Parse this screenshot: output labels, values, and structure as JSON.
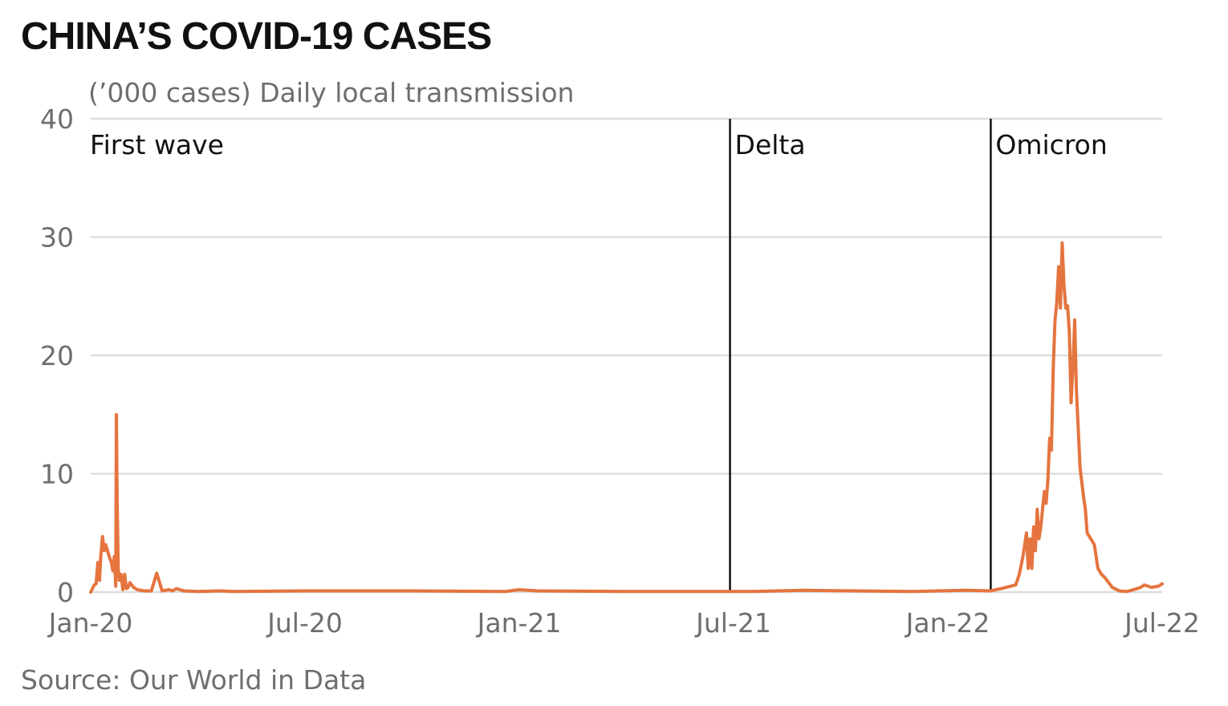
{
  "title": "CHINA’S COVID-19 CASES",
  "subtitle": "(’000 cases) Daily local transmission",
  "source": "Source:  Our World in Data",
  "colors": {
    "line": "#e5743f",
    "grid": "#dedede",
    "marker": "#111111",
    "text": "#6e6e6e"
  },
  "chart_data": {
    "type": "line",
    "title": "CHINA’S COVID-19 CASES",
    "ylabel": "(’000 cases) Daily local transmission",
    "xlabel": "",
    "ylim": [
      0,
      40
    ],
    "xlim": [
      0,
      30
    ],
    "x_unit": "months since Jan 2020",
    "y_ticks": [
      0,
      10,
      20,
      30,
      40
    ],
    "x_ticks": [
      {
        "value": 0,
        "label": "Jan-20"
      },
      {
        "value": 6,
        "label": "Jul-20"
      },
      {
        "value": 12,
        "label": "Jan-21"
      },
      {
        "value": 18,
        "label": "Jul-21"
      },
      {
        "value": 24,
        "label": "Jan-22"
      },
      {
        "value": 30,
        "label": "Jul-22"
      }
    ],
    "annotations": [
      {
        "x": 0,
        "label": "First wave",
        "line": false
      },
      {
        "x": 17.9,
        "label": "Delta",
        "line": true
      },
      {
        "x": 25.2,
        "label": "Omicron",
        "line": true
      }
    ],
    "series": [
      {
        "name": "Daily local transmission",
        "x": [
          0,
          0.1,
          0.15,
          0.2,
          0.25,
          0.28,
          0.33,
          0.38,
          0.42,
          0.48,
          0.52,
          0.58,
          0.62,
          0.66,
          0.7,
          0.72,
          0.74,
          0.77,
          0.8,
          0.85,
          0.9,
          0.95,
          1.0,
          1.05,
          1.1,
          1.2,
          1.3,
          1.5,
          1.7,
          1.85,
          2.0,
          2.2,
          2.3,
          2.4,
          2.6,
          3.0,
          3.6,
          4.0,
          6.0,
          9.0,
          11.6,
          12.0,
          12.5,
          15.0,
          18.0,
          18.5,
          20.0,
          23.0,
          24.5,
          25.2,
          25.5,
          25.9,
          26.0,
          26.1,
          26.2,
          26.25,
          26.3,
          26.35,
          26.4,
          26.45,
          26.5,
          26.55,
          26.6,
          26.7,
          26.75,
          26.8,
          26.85,
          26.9,
          26.95,
          27.0,
          27.05,
          27.1,
          27.15,
          27.2,
          27.25,
          27.3,
          27.35,
          27.4,
          27.45,
          27.5,
          27.55,
          27.6,
          27.7,
          27.8,
          27.85,
          27.9,
          28.0,
          28.1,
          28.2,
          28.3,
          28.4,
          28.5,
          28.6,
          28.8,
          29.0,
          29.2,
          29.4,
          29.5,
          29.7,
          29.9,
          30.0
        ],
        "values": [
          0,
          0.6,
          0.7,
          2.5,
          1.0,
          3.0,
          4.7,
          3.5,
          4.0,
          3.4,
          3.0,
          2.5,
          1.8,
          3.0,
          0.5,
          15.0,
          8.0,
          2.0,
          1.0,
          1.5,
          0.2,
          1.5,
          0.3,
          0.4,
          0.8,
          0.4,
          0.2,
          0.1,
          0.1,
          1.6,
          0.1,
          0.2,
          0.1,
          0.3,
          0.1,
          0.05,
          0.1,
          0.05,
          0.1,
          0.1,
          0.05,
          0.2,
          0.1,
          0.05,
          0.05,
          0.05,
          0.15,
          0.05,
          0.15,
          0.1,
          0.3,
          0.6,
          1.5,
          3.0,
          5.0,
          2.0,
          4.5,
          2.0,
          5.5,
          3.5,
          7.0,
          4.5,
          5.5,
          8.5,
          7.5,
          9.5,
          13.0,
          12.0,
          19.0,
          23.0,
          24.5,
          27.5,
          24.0,
          29.5,
          26.0,
          24.0,
          24.2,
          22.0,
          16.0,
          19.0,
          23.0,
          17.0,
          10.5,
          8.0,
          7.0,
          5.0,
          4.5,
          4.0,
          2.0,
          1.5,
          1.2,
          0.8,
          0.4,
          0.1,
          0.05,
          0.2,
          0.4,
          0.6,
          0.4,
          0.5,
          0.7
        ]
      }
    ]
  }
}
